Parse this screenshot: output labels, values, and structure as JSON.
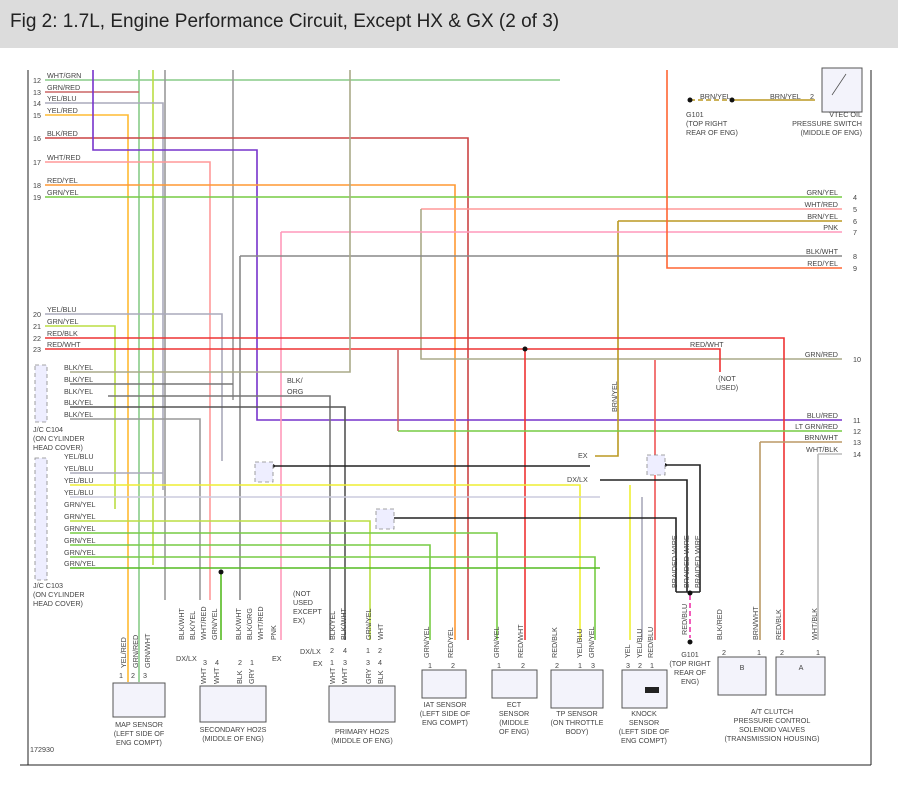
{
  "title": "Fig 2: 1.7L, Engine Performance Circuit, Except HX & GX (2 of 3)",
  "left_pins": [
    {
      "num": "12",
      "label": "WHT/GRN"
    },
    {
      "num": "13",
      "label": "GRN/RED"
    },
    {
      "num": "14",
      "label": "YEL/BLU"
    },
    {
      "num": "15",
      "label": "YEL/RED"
    },
    {
      "num": "16",
      "label": "BLK/RED"
    },
    {
      "num": "17",
      "label": "WHT/RED"
    },
    {
      "num": "18",
      "label": "RED/YEL"
    },
    {
      "num": "19",
      "label": "GRN/YEL"
    },
    {
      "num": "20",
      "label": "YEL/BLU"
    },
    {
      "num": "21",
      "label": "GRN/YEL"
    },
    {
      "num": "22",
      "label": "RED/BLK"
    },
    {
      "num": "23",
      "label": "RED/WHT"
    }
  ],
  "right_pins": [
    {
      "num": "4",
      "label": "GRN/YEL"
    },
    {
      "num": "5",
      "label": "WHT/RED"
    },
    {
      "num": "6",
      "label": "BRN/YEL"
    },
    {
      "num": "7",
      "label": "PNK"
    },
    {
      "num": "8",
      "label": "BLK/WHT"
    },
    {
      "num": "9",
      "label": "RED/YEL"
    },
    {
      "num": "10",
      "label": "GRN/RED"
    },
    {
      "num": "11",
      "label": "BLU/RED"
    },
    {
      "num": "12",
      "label": "LT GRN/RED"
    },
    {
      "num": "13",
      "label": "BRN/WHT"
    },
    {
      "num": "14",
      "label": "WHT/BLK"
    }
  ],
  "c104": {
    "rows": [
      "BLK/YEL",
      "BLK/YEL",
      "BLK/YEL",
      "BLK/YEL",
      "BLK/YEL"
    ],
    "name": [
      "J/C C104",
      "(ON CYLINDER",
      "HEAD COVER)"
    ]
  },
  "c103": {
    "rows": [
      "YEL/BLU",
      "YEL/BLU",
      "YEL/BLU",
      "YEL/BLU",
      "GRN/YEL",
      "GRN/YEL",
      "GRN/YEL",
      "GRN/YEL",
      "GRN/YEL",
      "GRN/YEL"
    ],
    "name": [
      "J/C C103",
      "(ON CYLINDER",
      "HEAD COVER)"
    ]
  },
  "top_right": {
    "g101_wire": "BRN/YEL",
    "switch_wire": "BRN/YEL",
    "switch_pin": "2",
    "g101": [
      "G101",
      "(TOP RIGHT",
      "REAR OF ENG)"
    ],
    "vtec": [
      "VTEC OIL",
      "PRESSURE SWITCH",
      "(MIDDLE OF ENG)"
    ]
  },
  "mid_labels": {
    "blk_org": [
      "BLK/",
      "ORG"
    ],
    "red_wht": "RED/WHT",
    "not_used": [
      "(NOT",
      "USED)"
    ],
    "brn_yel": "BRN/YEL",
    "ex": "EX",
    "dxlx": "DX/LX",
    "not_used_except": [
      "(NOT",
      "USED",
      "EXCEPT",
      "EX)"
    ],
    "braided": [
      "BRAIDED WIRE",
      "BRAIDED WIRE",
      "BRAIDED WIRE"
    ]
  },
  "bottom_wires": [
    "YEL/RED",
    "GRN/RED",
    "GRN/WHT",
    "BLK/WHT",
    "BLK/YEL",
    "WHT/RED",
    "GRN/YEL",
    "BLK/WHT",
    "BLK/ORG",
    "WHT/RED",
    "PNK",
    "BLK/YEL",
    "BLK/WHT",
    "GRN/YEL",
    "WHT",
    "GRN/YEL",
    "RED/YEL",
    "GRN/YEL",
    "RED/WHT",
    "RED/BLK",
    "YEL/BLU",
    "GRN/YEL",
    "YEL",
    "YEL/BLU",
    "RED/BLU",
    "RED/BLU",
    "BLK/RED",
    "BRN/WHT",
    "RED/BLK",
    "WHT/BLK"
  ],
  "pins": [
    "1",
    "2",
    "3",
    "3",
    "4",
    "2",
    "1",
    "4",
    "3",
    "1",
    "2",
    "3",
    "4",
    "2",
    "1",
    "1",
    "2",
    "1",
    "2",
    "2",
    "1",
    "3",
    "3",
    "2",
    "1",
    "2",
    "1",
    "2",
    "1"
  ],
  "ho2s_inner": [
    "WHT",
    "WHT",
    "BLK",
    "GRY",
    "WHT",
    "WHT",
    "GRY",
    "BLK"
  ],
  "ho2s_sel": {
    "dxlx": "DX/LX",
    "ex": "EX",
    "p_dxlx": "DX/LX",
    "p_ex": "EX"
  },
  "components": {
    "map": [
      "MAP SENSOR",
      "(LEFT SIDE OF",
      "ENG COMPT)"
    ],
    "sec": [
      "SECONDARY HO2S",
      "(MIDDLE OF ENG)"
    ],
    "pri": [
      "PRIMARY HO2S",
      "(MIDDLE OF ENG)"
    ],
    "iat": [
      "IAT SENSOR",
      "(LEFT SIDE OF",
      "ENG COMPT)"
    ],
    "ect": [
      "ECT",
      "SENSOR",
      "(MIDDLE",
      "OF ENG)"
    ],
    "tp": [
      "TP SENSOR",
      "(ON THROTTLE",
      "BODY)"
    ],
    "knock": [
      "KNOCK",
      "SENSOR",
      "(LEFT SIDE OF",
      "ENG COMPT)"
    ],
    "g101": [
      "G101",
      "(TOP RIGHT",
      "REAR OF",
      "ENG)"
    ],
    "at": [
      "A/T CLUTCH",
      "PRESSURE CONTROL",
      "SOLENOID VALVES",
      "(TRANSMISSION HOUSING)"
    ],
    "at_b": "B",
    "at_a": "A"
  },
  "figure_number": "172930"
}
